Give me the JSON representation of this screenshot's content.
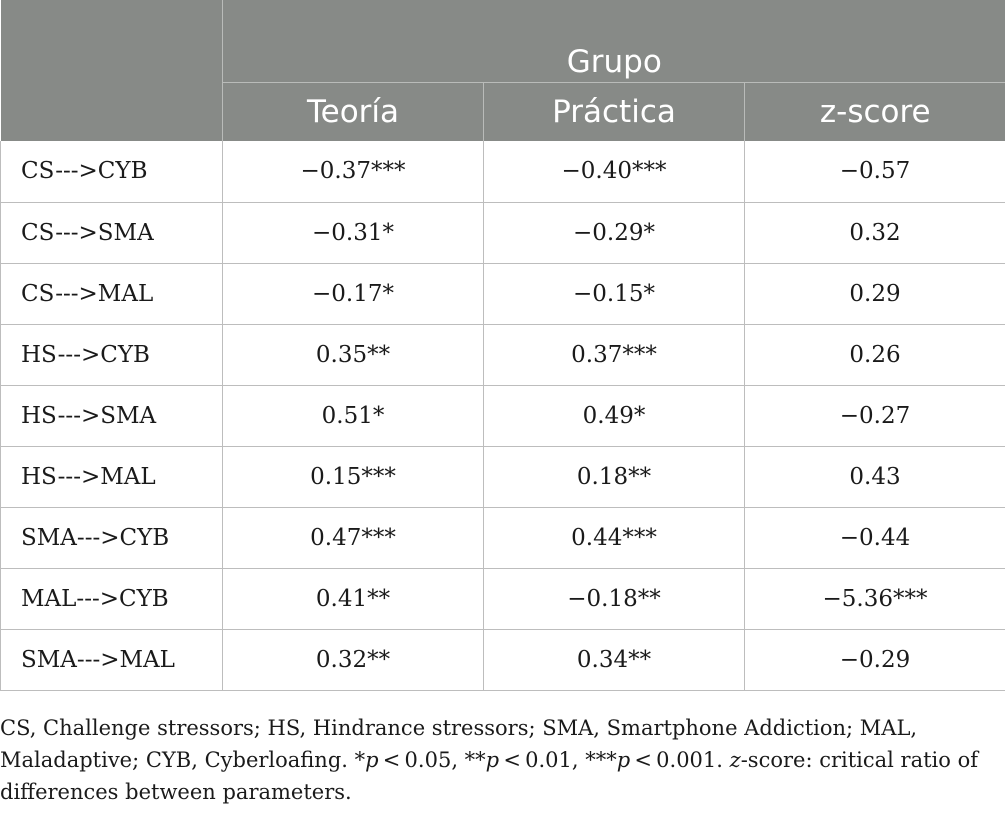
{
  "header": {
    "group_label": "Grupo",
    "columns": [
      "Teoría",
      "Práctica",
      "z-score"
    ]
  },
  "rows": [
    {
      "path": "CS--->CYB",
      "teoria": "−0.37***",
      "practica": "−0.40***",
      "z": "−0.57"
    },
    {
      "path": "CS--->SMA",
      "teoria": "−0.31*",
      "practica": "−0.29*",
      "z": "0.32"
    },
    {
      "path": "CS--->MAL",
      "teoria": "−0.17*",
      "practica": "−0.15*",
      "z": "0.29"
    },
    {
      "path": "HS--->CYB",
      "teoria": "0.35**",
      "practica": "0.37***",
      "z": "0.26"
    },
    {
      "path": "HS--->SMA",
      "teoria": "0.51*",
      "practica": "0.49*",
      "z": "−0.27"
    },
    {
      "path": "HS--->MAL",
      "teoria": "0.15***",
      "practica": "0.18**",
      "z": "0.43"
    },
    {
      "path": "SMA--->CYB",
      "teoria": "0.47***",
      "practica": "0.44***",
      "z": "−0.44"
    },
    {
      "path": "MAL--->CYB",
      "teoria": "0.41**",
      "practica": "−0.18**",
      "z": "−5.36***"
    },
    {
      "path": "SMA--->MAL",
      "teoria": "0.32**",
      "practica": "0.34**",
      "z": "−0.29"
    }
  ],
  "footnote": {
    "part1": "CS, Challenge stressors; HS, Hindrance stressors; SMA, Smartphone Addiction; MAL, Maladaptive; CYB, Cyberloafing. *",
    "p1": "p",
    "part2": " < 0.05, **",
    "p2": "p",
    "part3": " < 0.01, ***",
    "p3": "p",
    "part4": " < 0.001. ",
    "z": "z",
    "part5": "-score: critical ratio of differences between parameters."
  }
}
